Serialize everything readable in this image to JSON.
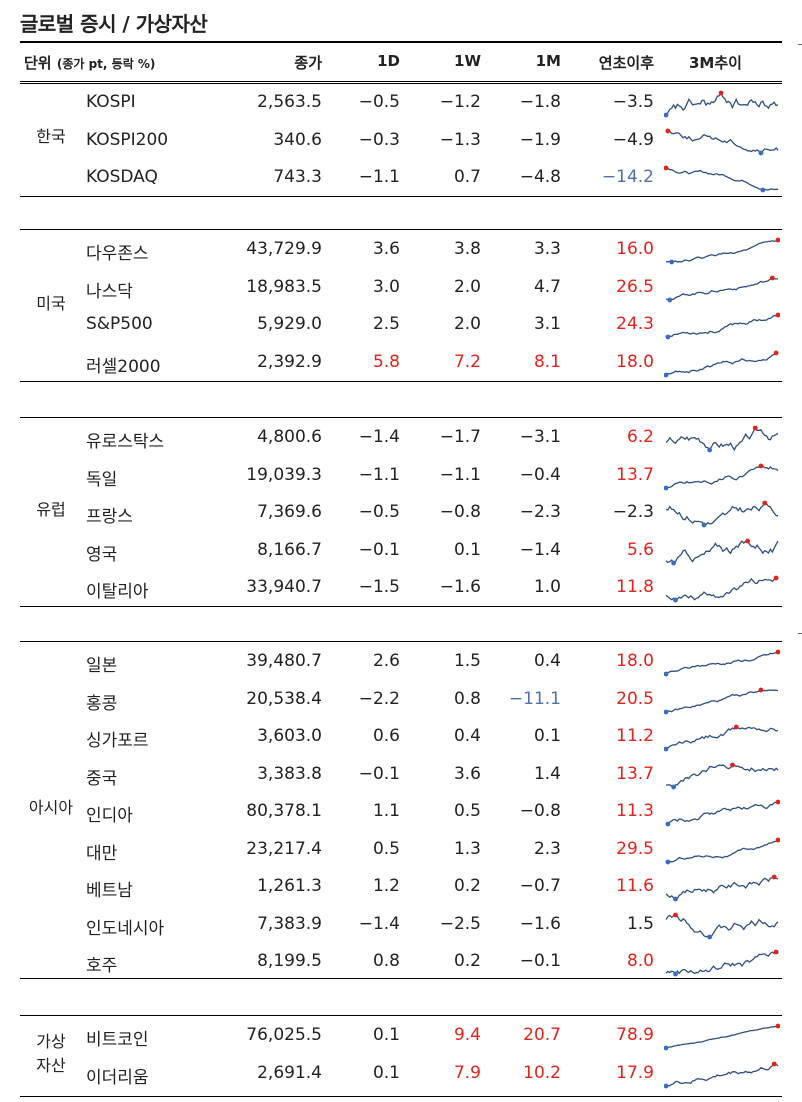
{
  "title": "글로벌 증시 / 가상자산",
  "header": {
    "unit_label": "단위",
    "unit_detail": "(종가 pt, 등락 %)",
    "close": "종가",
    "d1": "1D",
    "w1": "1W",
    "m1": "1M",
    "ytd": "연초이후",
    "trend": "3M추이"
  },
  "colors": {
    "positive": "#e2231a",
    "negative": "#4f6fae",
    "line": "#2f4f7f"
  },
  "sections": [
    {
      "region": "한국",
      "rows": [
        {
          "name": "KOSPI",
          "close": "2,563.5",
          "d1": "−0.5",
          "w1": "−1.2",
          "m1": "−1.8",
          "ytd": "−3.5",
          "d1_c": "",
          "w1_c": "",
          "m1_c": "",
          "ytd_c": ""
        },
        {
          "name": "KOSPI200",
          "close": "340.6",
          "d1": "−0.3",
          "w1": "−1.3",
          "m1": "−1.9",
          "ytd": "−4.9",
          "d1_c": "",
          "w1_c": "",
          "m1_c": "",
          "ytd_c": ""
        },
        {
          "name": "KOSDAQ",
          "close": "743.3",
          "d1": "−1.1",
          "w1": "0.7",
          "m1": "−4.8",
          "ytd": "−14.2",
          "d1_c": "",
          "w1_c": "",
          "m1_c": "",
          "ytd_c": "blue"
        }
      ]
    },
    {
      "region": "미국",
      "rows": [
        {
          "name": "다우존스",
          "close": "43,729.9",
          "d1": "3.6",
          "w1": "3.8",
          "m1": "3.3",
          "ytd": "16.0",
          "d1_c": "",
          "w1_c": "",
          "m1_c": "",
          "ytd_c": "red"
        },
        {
          "name": "나스닥",
          "close": "18,983.5",
          "d1": "3.0",
          "w1": "2.0",
          "m1": "4.7",
          "ytd": "26.5",
          "d1_c": "",
          "w1_c": "",
          "m1_c": "",
          "ytd_c": "red"
        },
        {
          "name": "S&P500",
          "close": "5,929.0",
          "d1": "2.5",
          "w1": "2.0",
          "m1": "3.1",
          "ytd": "24.3",
          "d1_c": "",
          "w1_c": "",
          "m1_c": "",
          "ytd_c": "red"
        },
        {
          "name": "러셀2000",
          "close": "2,392.9",
          "d1": "5.8",
          "w1": "7.2",
          "m1": "8.1",
          "ytd": "18.0",
          "d1_c": "red",
          "w1_c": "red",
          "m1_c": "red",
          "ytd_c": "red"
        }
      ]
    },
    {
      "region": "유럽",
      "rows": [
        {
          "name": "유로스탁스",
          "close": "4,800.6",
          "d1": "−1.4",
          "w1": "−1.7",
          "m1": "−3.1",
          "ytd": "6.2",
          "d1_c": "",
          "w1_c": "",
          "m1_c": "",
          "ytd_c": "red"
        },
        {
          "name": "독일",
          "close": "19,039.3",
          "d1": "−1.1",
          "w1": "−1.1",
          "m1": "−0.4",
          "ytd": "13.7",
          "d1_c": "",
          "w1_c": "",
          "m1_c": "",
          "ytd_c": "red"
        },
        {
          "name": "프랑스",
          "close": "7,369.6",
          "d1": "−0.5",
          "w1": "−0.8",
          "m1": "−2.3",
          "ytd": "−2.3",
          "d1_c": "",
          "w1_c": "",
          "m1_c": "",
          "ytd_c": ""
        },
        {
          "name": "영국",
          "close": "8,166.7",
          "d1": "−0.1",
          "w1": "0.1",
          "m1": "−1.4",
          "ytd": "5.6",
          "d1_c": "",
          "w1_c": "",
          "m1_c": "",
          "ytd_c": "red"
        },
        {
          "name": "이탈리아",
          "close": "33,940.7",
          "d1": "−1.5",
          "w1": "−1.6",
          "m1": "1.0",
          "ytd": "11.8",
          "d1_c": "",
          "w1_c": "",
          "m1_c": "",
          "ytd_c": "red"
        }
      ]
    },
    {
      "region": "아시아",
      "rows": [
        {
          "name": "일본",
          "close": "39,480.7",
          "d1": "2.6",
          "w1": "1.5",
          "m1": "0.4",
          "ytd": "18.0",
          "d1_c": "",
          "w1_c": "",
          "m1_c": "",
          "ytd_c": "red"
        },
        {
          "name": "홍콩",
          "close": "20,538.4",
          "d1": "−2.2",
          "w1": "0.8",
          "m1": "−11.1",
          "ytd": "20.5",
          "d1_c": "",
          "w1_c": "",
          "m1_c": "blue",
          "ytd_c": "red"
        },
        {
          "name": "싱가포르",
          "close": "3,603.0",
          "d1": "0.6",
          "w1": "0.4",
          "m1": "0.1",
          "ytd": "11.2",
          "d1_c": "",
          "w1_c": "",
          "m1_c": "",
          "ytd_c": "red"
        },
        {
          "name": "중국",
          "close": "3,383.8",
          "d1": "−0.1",
          "w1": "3.6",
          "m1": "1.4",
          "ytd": "13.7",
          "d1_c": "",
          "w1_c": "",
          "m1_c": "",
          "ytd_c": "red"
        },
        {
          "name": "인디아",
          "close": "80,378.1",
          "d1": "1.1",
          "w1": "0.5",
          "m1": "−0.8",
          "ytd": "11.3",
          "d1_c": "",
          "w1_c": "",
          "m1_c": "",
          "ytd_c": "red"
        },
        {
          "name": "대만",
          "close": "23,217.4",
          "d1": "0.5",
          "w1": "1.3",
          "m1": "2.3",
          "ytd": "29.5",
          "d1_c": "",
          "w1_c": "",
          "m1_c": "",
          "ytd_c": "red"
        },
        {
          "name": "베트남",
          "close": "1,261.3",
          "d1": "1.2",
          "w1": "0.2",
          "m1": "−0.7",
          "ytd": "11.6",
          "d1_c": "",
          "w1_c": "",
          "m1_c": "",
          "ytd_c": "red"
        },
        {
          "name": "인도네시아",
          "close": "7,383.9",
          "d1": "−1.4",
          "w1": "−2.5",
          "m1": "−1.6",
          "ytd": "1.5",
          "d1_c": "",
          "w1_c": "",
          "m1_c": "",
          "ytd_c": ""
        },
        {
          "name": "호주",
          "close": "8,199.5",
          "d1": "0.8",
          "w1": "0.2",
          "m1": "−0.1",
          "ytd": "8.0",
          "d1_c": "",
          "w1_c": "",
          "m1_c": "",
          "ytd_c": "red"
        }
      ]
    },
    {
      "region": "가상\n자산",
      "rows": [
        {
          "name": "비트코인",
          "close": "76,025.5",
          "d1": "0.1",
          "w1": "9.4",
          "m1": "20.7",
          "ytd": "78.9",
          "d1_c": "",
          "w1_c": "red",
          "m1_c": "red",
          "ytd_c": "red"
        },
        {
          "name": "이더리움",
          "close": "2,691.4",
          "d1": "0.1",
          "w1": "7.9",
          "m1": "10.2",
          "ytd": "17.9",
          "d1_c": "",
          "w1_c": "red",
          "m1_c": "red",
          "ytd_c": "red"
        }
      ]
    }
  ]
}
